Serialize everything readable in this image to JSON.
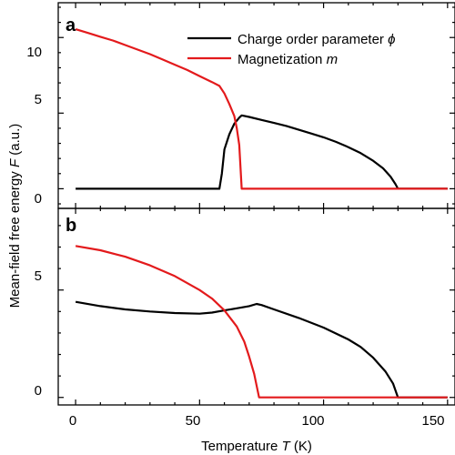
{
  "chart_data": [
    {
      "panel": "a",
      "type": "line",
      "xlabel": "Temperature T (K)",
      "xlim": [
        -7,
        153
      ],
      "ylim": [
        -1.3,
        12.3
      ],
      "yticks": [
        0,
        5,
        10
      ],
      "xticks": [
        0,
        50,
        100,
        150
      ],
      "legend": "top-right",
      "series": [
        {
          "name": "Charge order parameter ϕ",
          "color": "#000000",
          "points": [
            [
              0,
              0
            ],
            [
              58,
              0
            ],
            [
              59,
              1.0
            ],
            [
              60,
              2.6
            ],
            [
              62,
              3.6
            ],
            [
              64,
              4.3
            ],
            [
              66,
              4.7
            ],
            [
              67,
              4.85
            ],
            [
              70,
              4.75
            ],
            [
              75,
              4.55
            ],
            [
              80,
              4.35
            ],
            [
              85,
              4.15
            ],
            [
              90,
              3.9
            ],
            [
              95,
              3.65
            ],
            [
              100,
              3.4
            ],
            [
              105,
              3.1
            ],
            [
              110,
              2.75
            ],
            [
              115,
              2.35
            ],
            [
              120,
              1.85
            ],
            [
              124,
              1.35
            ],
            [
              127,
              0.8
            ],
            [
              129,
              0.3
            ],
            [
              130,
              0
            ],
            [
              150,
              0
            ]
          ]
        },
        {
          "name": "Magnetization m",
          "color": "#e31a1c",
          "points": [
            [
              0,
              10.55
            ],
            [
              5,
              10.3
            ],
            [
              10,
              10.05
            ],
            [
              15,
              9.8
            ],
            [
              20,
              9.5
            ],
            [
              25,
              9.2
            ],
            [
              30,
              8.9
            ],
            [
              35,
              8.55
            ],
            [
              40,
              8.2
            ],
            [
              45,
              7.85
            ],
            [
              50,
              7.45
            ],
            [
              55,
              7.05
            ],
            [
              58,
              6.8
            ],
            [
              60,
              6.3
            ],
            [
              62,
              5.6
            ],
            [
              64,
              4.8
            ],
            [
              65,
              4.0
            ],
            [
              66,
              2.9
            ],
            [
              67,
              0
            ],
            [
              150,
              0
            ]
          ]
        }
      ],
      "legend_entries": [
        {
          "prefix": "Charge order parameter",
          "symbol": "ϕ"
        },
        {
          "prefix": "Magnetization",
          "symbol": "m"
        }
      ]
    },
    {
      "panel": "b",
      "type": "line",
      "xlabel": "Temperature T (K)",
      "xlim": [
        -7,
        153
      ],
      "ylim": [
        -0.35,
        8.8
      ],
      "yticks": [
        0,
        5
      ],
      "xticks": [
        0,
        50,
        100,
        150
      ],
      "series": [
        {
          "name": "Charge order parameter ϕ",
          "color": "#000000",
          "points": [
            [
              0,
              4.45
            ],
            [
              10,
              4.25
            ],
            [
              20,
              4.1
            ],
            [
              30,
              4.0
            ],
            [
              40,
              3.93
            ],
            [
              50,
              3.9
            ],
            [
              55,
              3.95
            ],
            [
              60,
              4.05
            ],
            [
              65,
              4.15
            ],
            [
              70,
              4.25
            ],
            [
              73,
              4.35
            ],
            [
              75,
              4.3
            ],
            [
              80,
              4.1
            ],
            [
              90,
              3.7
            ],
            [
              100,
              3.25
            ],
            [
              110,
              2.7
            ],
            [
              115,
              2.35
            ],
            [
              120,
              1.85
            ],
            [
              125,
              1.2
            ],
            [
              128,
              0.65
            ],
            [
              130,
              0
            ],
            [
              150,
              0
            ]
          ]
        },
        {
          "name": "Magnetization m",
          "color": "#e31a1c",
          "points": [
            [
              0,
              7.05
            ],
            [
              10,
              6.85
            ],
            [
              20,
              6.55
            ],
            [
              30,
              6.15
            ],
            [
              40,
              5.65
            ],
            [
              50,
              5.0
            ],
            [
              55,
              4.6
            ],
            [
              60,
              4.05
            ],
            [
              65,
              3.3
            ],
            [
              68,
              2.6
            ],
            [
              70,
              1.9
            ],
            [
              72,
              1.1
            ],
            [
              73,
              0.55
            ],
            [
              74,
              0
            ],
            [
              150,
              0
            ]
          ]
        }
      ]
    }
  ],
  "labels": {
    "panel_a": "a",
    "panel_b": "b",
    "x_axis_prefix": "Temperature",
    "x_axis_var": "T",
    "x_axis_unit": " (K)",
    "y_axis_prefix": "Mean-field free energy",
    "y_axis_var": "F",
    "y_axis_unit": " (a.u.)"
  },
  "tick_labels": {
    "a_y": [
      "0",
      "5",
      "10"
    ],
    "b_y": [
      "0",
      "5"
    ],
    "x": [
      "0",
      "50",
      "100",
      "150"
    ]
  }
}
